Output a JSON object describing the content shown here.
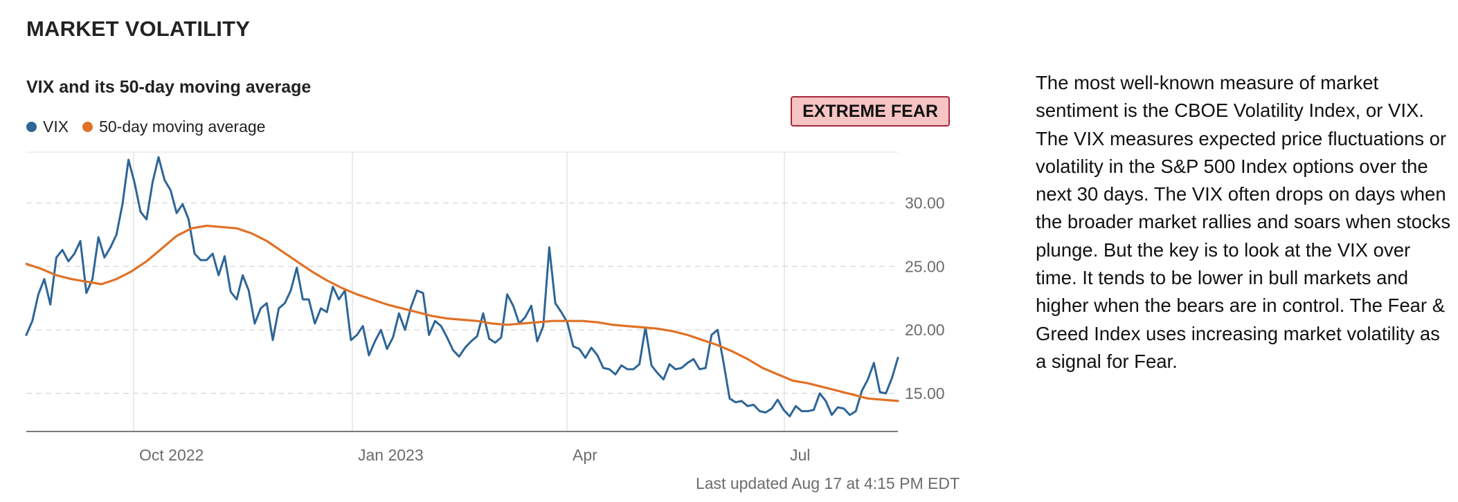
{
  "section_title": "MARKET VOLATILITY",
  "chart_title": "VIX and its 50-day moving average",
  "badge": {
    "label": "EXTREME FEAR",
    "background": "#f6c4c2",
    "border": "#a8253a"
  },
  "legend": [
    {
      "label": "VIX",
      "color": "#2d6597"
    },
    {
      "label": "50-day moving average",
      "color": "#e07126"
    }
  ],
  "last_updated": "Last updated Aug 17 at 4:15 PM EDT",
  "description": "The most well-known measure of market sentiment is the CBOE Volatility Index, or VIX. The VIX measures expected price fluctuations or volatility in the S&P 500 Index options over the next 30 days. The VIX often drops on days when the broader market rallies and soars when stocks plunge. But the key is to look at the VIX over time. It tends to be lower in bull markets and higher when the bears are in control. The Fear & Greed Index uses increasing market volatility as a signal for Fear.",
  "chart_data": {
    "type": "line",
    "x_tick_labels": [
      "Oct 2022",
      "Jan 2023",
      "Apr",
      "Jul"
    ],
    "y_ticks": [
      "30.00",
      "25.00",
      "20.00",
      "15.00"
    ],
    "y_tick_values": [
      30,
      25,
      20,
      15
    ],
    "ylim": [
      12.0,
      34.0
    ],
    "grid": "horizontal dashed, vertical solid at x ticks",
    "legend_placement": "top-left",
    "series": [
      {
        "name": "VIX",
        "color": "#2d6597",
        "values": [
          19.6,
          20.7,
          22.8,
          24.0,
          22.0,
          25.7,
          26.3,
          25.4,
          26.0,
          27.0,
          22.9,
          24.0,
          27.3,
          25.7,
          26.5,
          27.5,
          29.9,
          33.4,
          31.6,
          29.3,
          28.7,
          31.6,
          33.6,
          31.8,
          31.0,
          29.2,
          29.9,
          28.7,
          26.0,
          25.5,
          25.5,
          26.0,
          24.3,
          25.8,
          23.0,
          22.4,
          24.3,
          23.1,
          20.5,
          21.7,
          22.1,
          19.2,
          21.7,
          22.1,
          23.1,
          24.9,
          22.4,
          22.4,
          20.5,
          21.7,
          21.4,
          23.4,
          22.4,
          23.1,
          19.2,
          19.6,
          20.3,
          18.0,
          19.1,
          20.0,
          18.5,
          19.4,
          21.3,
          20.0,
          21.8,
          23.1,
          22.9,
          19.6,
          20.7,
          20.3,
          19.4,
          18.4,
          17.9,
          18.6,
          19.1,
          19.5,
          21.3,
          19.3,
          19.0,
          19.4,
          22.8,
          21.9,
          20.5,
          21.0,
          21.9,
          19.1,
          20.3,
          26.5,
          22.1,
          21.4,
          20.6,
          18.7,
          18.5,
          17.8,
          18.6,
          18.0,
          17.0,
          16.9,
          16.5,
          17.2,
          16.9,
          16.9,
          17.3,
          20.2,
          17.2,
          16.6,
          16.1,
          17.3,
          16.9,
          17.0,
          17.4,
          17.7,
          16.9,
          17.0,
          19.6,
          20.0,
          17.4,
          14.6,
          14.3,
          14.4,
          14.0,
          14.1,
          13.6,
          13.5,
          13.8,
          14.5,
          13.7,
          13.2,
          14.0,
          13.6,
          13.6,
          13.7,
          15.0,
          14.4,
          13.3,
          13.9,
          13.8,
          13.3,
          13.6,
          15.2,
          16.1,
          17.4,
          15.1,
          15.0,
          16.2,
          17.8
        ],
        "type": "line"
      },
      {
        "name": "50-day moving average",
        "color": "#e07126",
        "values": [
          25.2,
          24.8,
          24.3,
          24.0,
          23.8,
          23.6,
          24.0,
          24.6,
          25.4,
          26.4,
          27.4,
          28.0,
          28.2,
          28.1,
          28.0,
          27.6,
          27.0,
          26.2,
          25.4,
          24.6,
          23.9,
          23.3,
          22.8,
          22.4,
          22.0,
          21.7,
          21.4,
          21.1,
          20.9,
          20.8,
          20.7,
          20.5,
          20.4,
          20.5,
          20.6,
          20.7,
          20.7,
          20.7,
          20.6,
          20.4,
          20.3,
          20.2,
          20.1,
          19.9,
          19.6,
          19.2,
          18.8,
          18.3,
          17.7,
          17.0,
          16.5,
          16.0,
          15.8,
          15.5,
          15.2,
          14.9,
          14.6,
          14.5,
          14.4
        ],
        "type": "line"
      }
    ]
  }
}
